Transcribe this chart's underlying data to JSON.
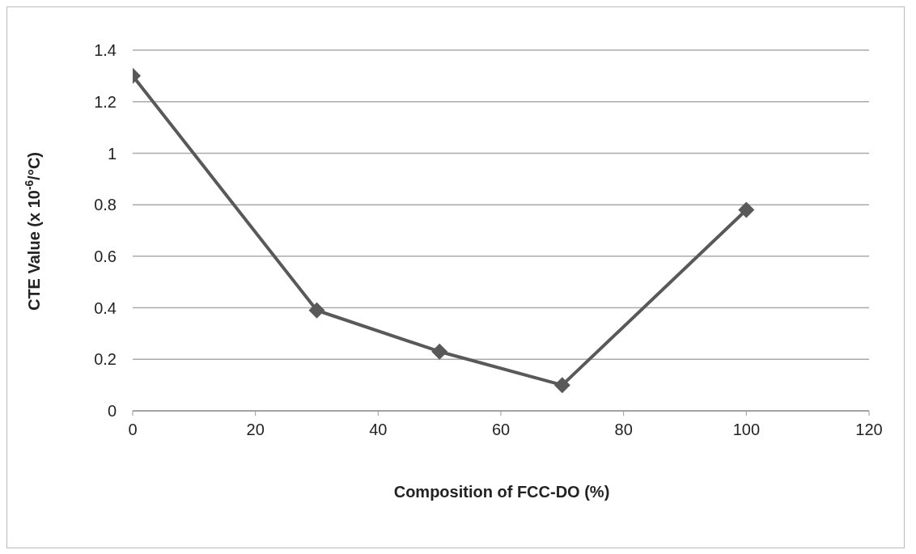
{
  "chart_data": {
    "type": "line",
    "xlabel": "Composition of FCC-DO (%)",
    "ylabel": "CTE Value (x 10$^{-6}$/°C)",
    "x": [
      0,
      30,
      50,
      70,
      100
    ],
    "series": [
      {
        "color": "#595959",
        "values": [
          1.3,
          0.39,
          0.23,
          0.1,
          0.78
        ]
      }
    ],
    "xlim": [
      0,
      120
    ],
    "xticks": [
      0,
      20,
      40,
      60,
      80,
      100,
      120
    ],
    "ylim": [
      0,
      1.4
    ],
    "yticks": [
      0,
      0.2,
      0.4,
      0.6,
      0.8,
      1,
      1.2,
      1.4
    ],
    "grid": "y",
    "marker": "diamond",
    "line_style": "solid",
    "legend": false
  }
}
